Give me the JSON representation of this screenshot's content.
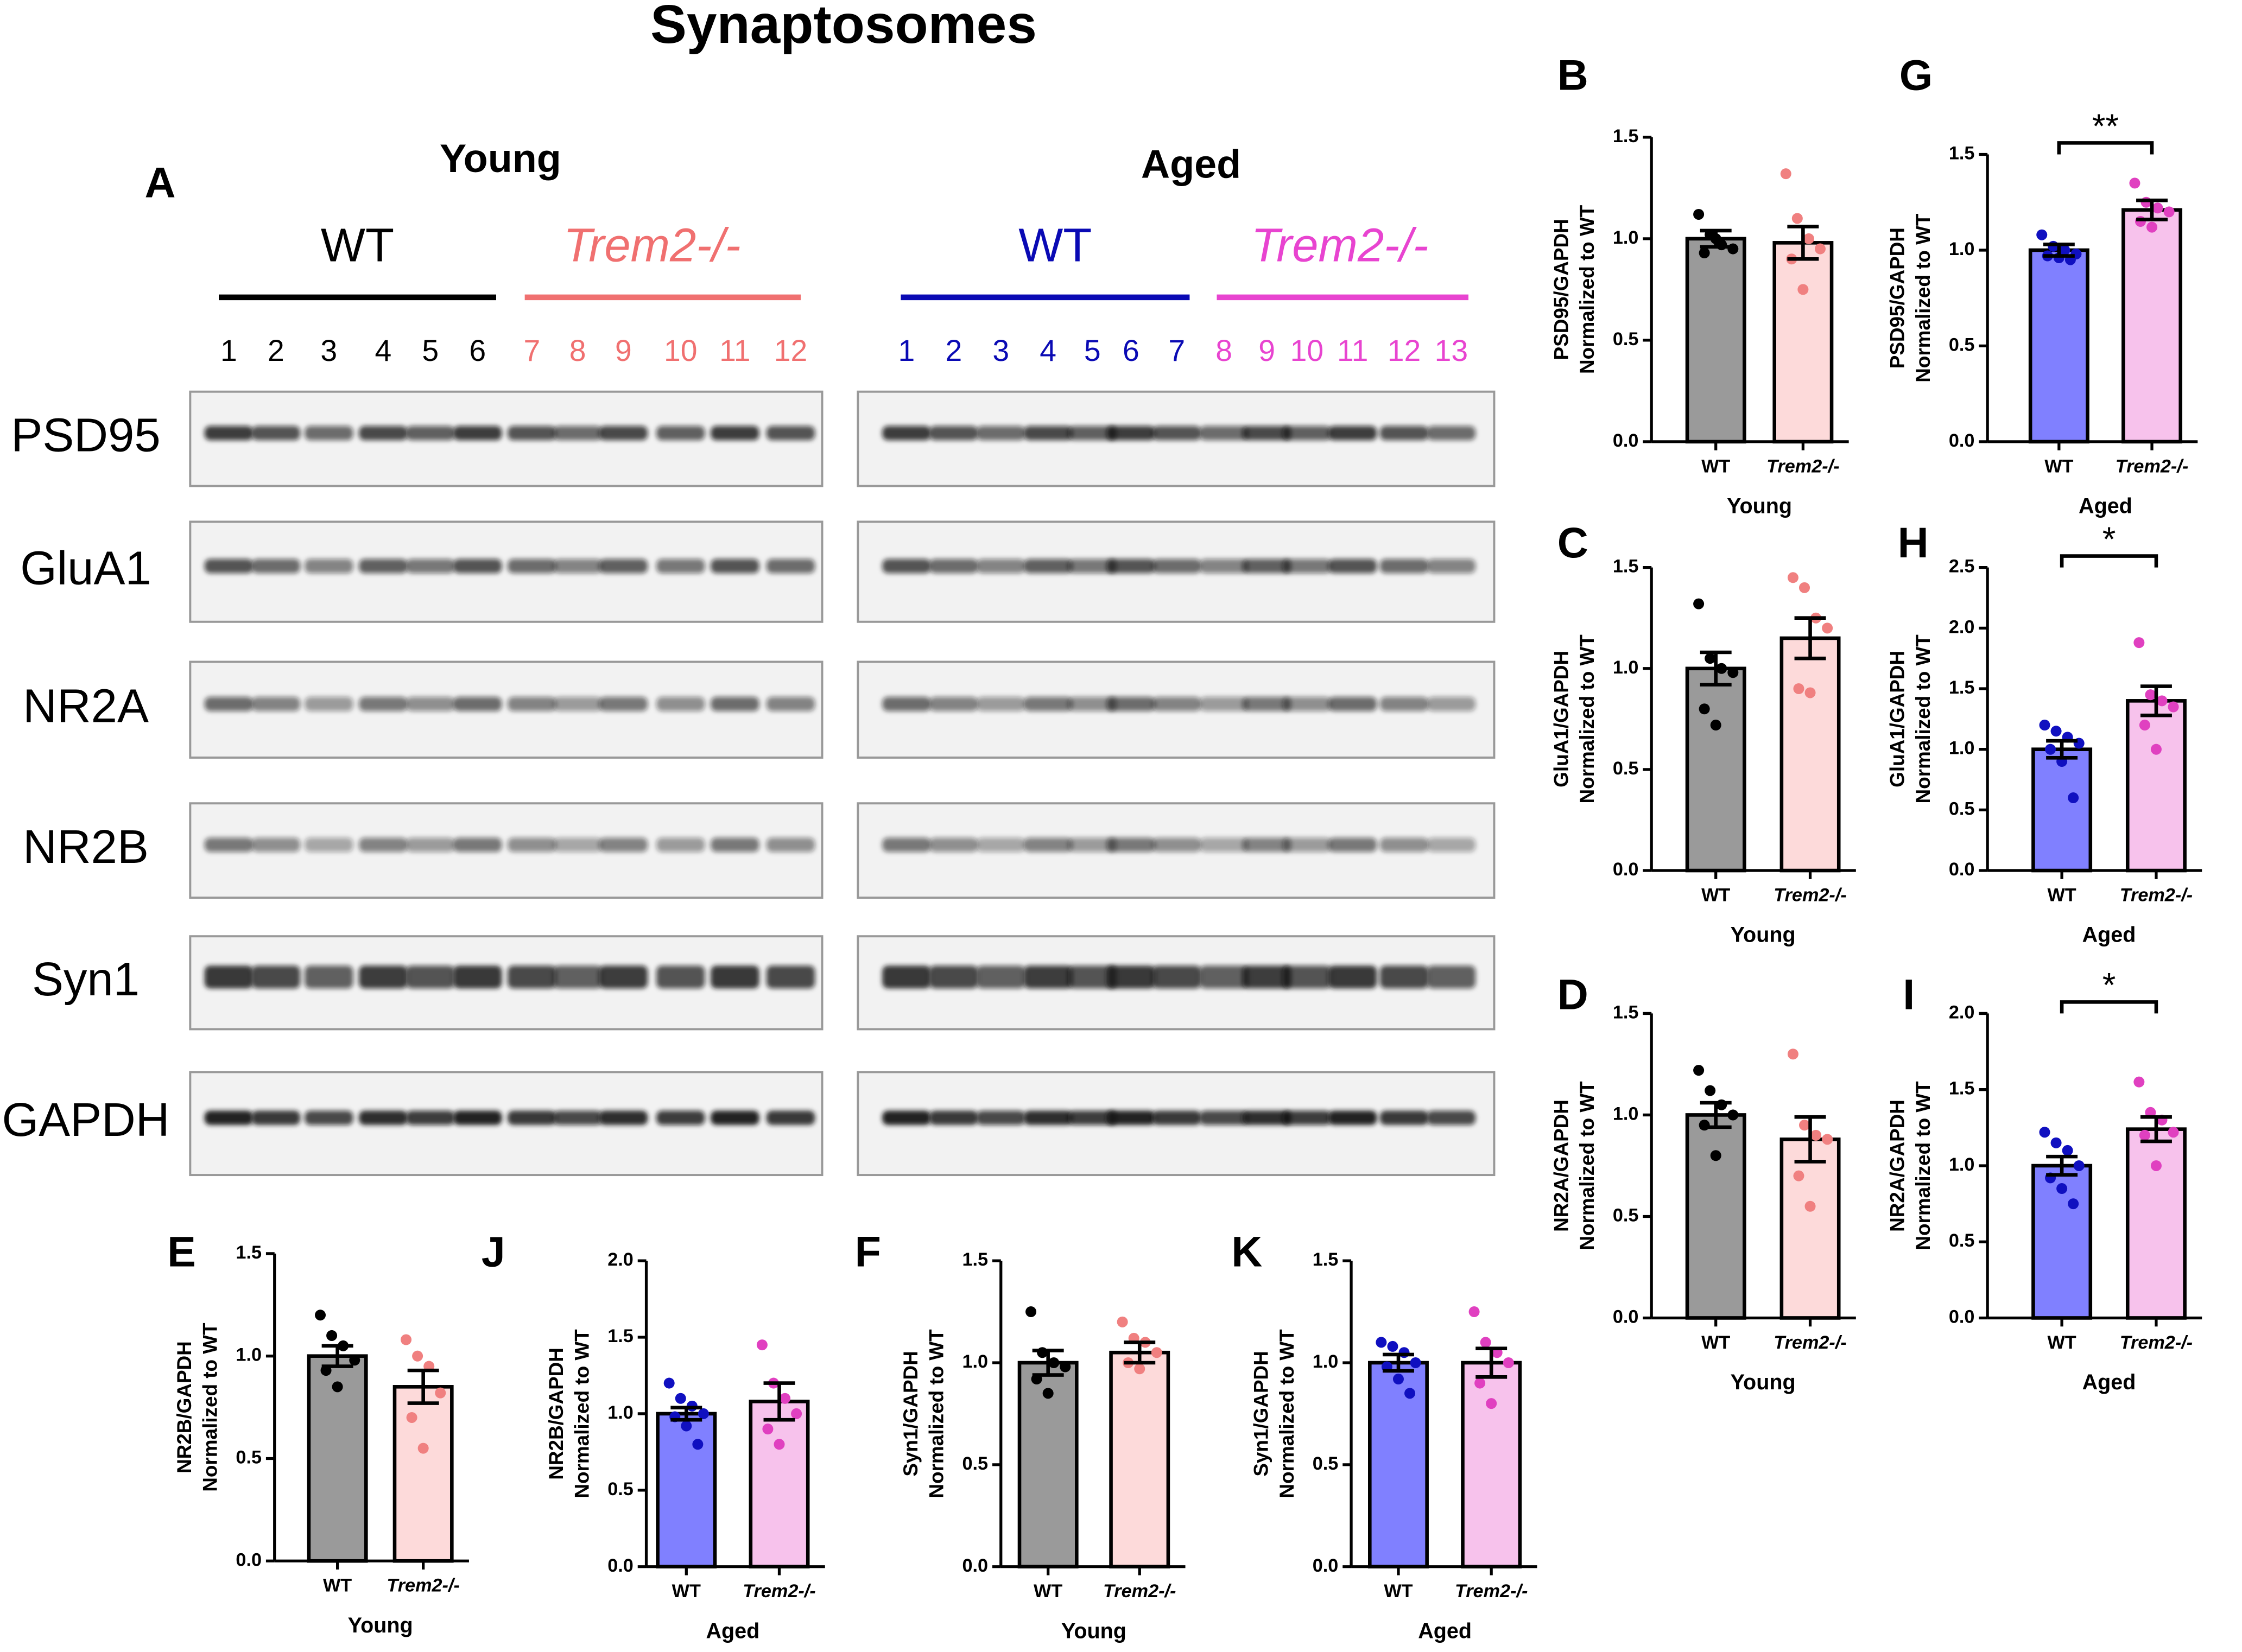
{
  "blot": {
    "title": "Synaptosomes",
    "panel": "A",
    "groups": [
      {
        "age": "Young",
        "genotypes": [
          {
            "name": "WT",
            "color": "#000000",
            "lanes": [
              "1",
              "2",
              "3",
              "4",
              "5",
              "6"
            ]
          },
          {
            "name": "Trem2-/-",
            "color": "#f07070",
            "lanes": [
              "7",
              "8",
              "9",
              "10",
              "11",
              "12"
            ]
          }
        ]
      },
      {
        "age": "Aged",
        "genotypes": [
          {
            "name": "WT",
            "color": "#0a0ab4",
            "lanes": [
              "1",
              "2",
              "3",
              "4",
              "5",
              "6",
              "7"
            ]
          },
          {
            "name": "Trem2-/-",
            "color": "#e844d0",
            "lanes": [
              "8",
              "9",
              "10",
              "11",
              "12",
              "13"
            ]
          }
        ]
      }
    ],
    "proteins": [
      "PSD95",
      "GluA1",
      "NR2A",
      "NR2B",
      "Syn1",
      "GAPDH"
    ]
  },
  "chart_data": [
    {
      "type": "bar",
      "panel": "B",
      "ylabel": [
        "PSD95/GAPDH",
        "Normalized to WT"
      ],
      "xlabel": "Young",
      "categories": [
        "WT",
        "Trem2-/-"
      ],
      "values": [
        1.0,
        0.98
      ],
      "errors": [
        0.04,
        0.08
      ],
      "points": [
        [
          1.12,
          1.02,
          0.97,
          0.95,
          0.93,
          1.0
        ],
        [
          1.32,
          1.1,
          1.0,
          0.95,
          0.9,
          0.75
        ]
      ],
      "colors": [
        "#9a9a9a",
        "#fddada"
      ],
      "point_colors": [
        "#000000",
        "#f08080"
      ],
      "ylim": [
        0,
        1.5
      ],
      "yticks": [
        {
          "value": 0,
          "label": "0.0"
        },
        0.5,
        {
          "value": 1,
          "label": "1.0"
        },
        1.5
      ]
    },
    {
      "type": "bar",
      "panel": "C",
      "ylabel": [
        "GluA1/GAPDH",
        "Normalized to WT"
      ],
      "xlabel": "Young",
      "categories": [
        "WT",
        "Trem2-/-"
      ],
      "values": [
        1.0,
        1.15
      ],
      "errors": [
        0.08,
        0.1
      ],
      "points": [
        [
          1.32,
          1.05,
          1.0,
          0.98,
          0.8,
          0.72
        ],
        [
          1.45,
          1.4,
          1.25,
          1.2,
          0.9,
          0.88
        ]
      ],
      "colors": [
        "#9a9a9a",
        "#fddada"
      ],
      "point_colors": [
        "#000000",
        "#f08080"
      ],
      "ylim": [
        0,
        1.5
      ],
      "yticks": [
        {
          "value": 0,
          "label": "0.0"
        },
        0.5,
        {
          "value": 1,
          "label": "1.0"
        },
        1.5
      ]
    },
    {
      "type": "bar",
      "panel": "D",
      "ylabel": [
        "NR2A/GAPDH",
        "Normalized to WT"
      ],
      "xlabel": "Young",
      "categories": [
        "WT",
        "Trem2-/-"
      ],
      "values": [
        1.0,
        0.88
      ],
      "errors": [
        0.06,
        0.11
      ],
      "points": [
        [
          1.22,
          1.12,
          1.05,
          1.0,
          0.95,
          0.8
        ],
        [
          1.3,
          0.95,
          0.9,
          0.88,
          0.7,
          0.55
        ]
      ],
      "colors": [
        "#9a9a9a",
        "#fddada"
      ],
      "point_colors": [
        "#000000",
        "#f08080"
      ],
      "ylim": [
        0,
        1.5
      ],
      "yticks": [
        {
          "value": 0,
          "label": "0.0"
        },
        0.5,
        {
          "value": 1,
          "label": "1.0"
        },
        1.5
      ]
    },
    {
      "type": "bar",
      "panel": "E",
      "ylabel": [
        "NR2B/GAPDH",
        "Normalized to WT"
      ],
      "xlabel": "Young",
      "categories": [
        "WT",
        "Trem2-/-"
      ],
      "values": [
        1.0,
        0.85
      ],
      "errors": [
        0.05,
        0.08
      ],
      "points": [
        [
          1.2,
          1.1,
          1.05,
          0.98,
          0.93,
          0.85
        ],
        [
          1.08,
          1.0,
          0.95,
          0.82,
          0.7,
          0.55
        ]
      ],
      "colors": [
        "#9a9a9a",
        "#fddada"
      ],
      "point_colors": [
        "#000000",
        "#f08080"
      ],
      "ylim": [
        0,
        1.5
      ],
      "yticks": [
        {
          "value": 0,
          "label": "0.0"
        },
        0.5,
        {
          "value": 1,
          "label": "1.0"
        },
        1.5
      ]
    },
    {
      "type": "bar",
      "panel": "F",
      "ylabel": [
        "Syn1/GAPDH",
        "Normalized to WT"
      ],
      "xlabel": "Young",
      "categories": [
        "WT",
        "Trem2-/-"
      ],
      "values": [
        1.0,
        1.05
      ],
      "errors": [
        0.06,
        0.05
      ],
      "points": [
        [
          1.25,
          1.05,
          1.0,
          0.98,
          0.92,
          0.85
        ],
        [
          1.2,
          1.12,
          1.1,
          1.05,
          1.0,
          0.97
        ]
      ],
      "colors": [
        "#9a9a9a",
        "#fddada"
      ],
      "point_colors": [
        "#000000",
        "#f08080"
      ],
      "ylim": [
        0,
        1.5
      ],
      "yticks": [
        {
          "value": 0,
          "label": "0.0"
        },
        0.5,
        {
          "value": 1,
          "label": "1.0"
        },
        1.5
      ]
    },
    {
      "type": "bar",
      "panel": "G",
      "ylabel": [
        "PSD95/GAPDH",
        "Normalized to WT"
      ],
      "xlabel": "Aged",
      "categories": [
        "WT",
        "Trem2-/-"
      ],
      "values": [
        1.0,
        1.21
      ],
      "errors": [
        0.03,
        0.05
      ],
      "points": [
        [
          1.08,
          1.02,
          1.0,
          0.98,
          0.97,
          0.96,
          0.95
        ],
        [
          1.35,
          1.25,
          1.22,
          1.2,
          1.15,
          1.12
        ]
      ],
      "colors": [
        "#8080ff",
        "#f7c2ec"
      ],
      "point_colors": [
        "#1010c0",
        "#e040c0"
      ],
      "ylim": [
        0,
        1.5
      ],
      "yticks": [
        {
          "value": 0,
          "label": "0.0"
        },
        0.5,
        {
          "value": 1,
          "label": "1.0"
        },
        1.5
      ],
      "annotation": "**"
    },
    {
      "type": "bar",
      "panel": "H",
      "ylabel": [
        "GluA1/GAPDH",
        "Normalized to WT"
      ],
      "xlabel": "Aged",
      "categories": [
        "WT",
        "Trem2-/-"
      ],
      "values": [
        1.0,
        1.4
      ],
      "errors": [
        0.07,
        0.12
      ],
      "points": [
        [
          1.2,
          1.15,
          1.1,
          1.05,
          1.0,
          0.9,
          0.6
        ],
        [
          1.88,
          1.45,
          1.4,
          1.35,
          1.2,
          1.0
        ]
      ],
      "colors": [
        "#8080ff",
        "#f7c2ec"
      ],
      "point_colors": [
        "#1010c0",
        "#e040c0"
      ],
      "ylim": [
        0,
        2.5
      ],
      "yticks": [
        {
          "value": 0,
          "label": "0.0"
        },
        0.5,
        {
          "value": 1,
          "label": "1.0"
        },
        1.5,
        {
          "value": 2,
          "label": "2.0"
        },
        2.5
      ],
      "annotation": "*"
    },
    {
      "type": "bar",
      "panel": "I",
      "ylabel": [
        "NR2A/GAPDH",
        "Normalized to WT"
      ],
      "xlabel": "Aged",
      "categories": [
        "WT",
        "Trem2-/-"
      ],
      "values": [
        1.0,
        1.24
      ],
      "errors": [
        0.06,
        0.08
      ],
      "points": [
        [
          1.22,
          1.15,
          1.1,
          1.0,
          0.92,
          0.85,
          0.75
        ],
        [
          1.55,
          1.35,
          1.3,
          1.22,
          1.2,
          1.0
        ]
      ],
      "colors": [
        "#8080ff",
        "#f7c2ec"
      ],
      "point_colors": [
        "#1010c0",
        "#e040c0"
      ],
      "ylim": [
        0,
        2
      ],
      "yticks": [
        {
          "value": 0,
          "label": "0.0"
        },
        0.5,
        {
          "value": 1,
          "label": "1.0"
        },
        1.5,
        {
          "value": 2,
          "label": "2.0"
        }
      ],
      "annotation": "*"
    },
    {
      "type": "bar",
      "panel": "J",
      "ylabel": [
        "NR2B/GAPDH",
        "Normalized to WT"
      ],
      "xlabel": "Aged",
      "categories": [
        "WT",
        "Trem2-/-"
      ],
      "values": [
        1.0,
        1.08
      ],
      "errors": [
        0.04,
        0.12
      ],
      "points": [
        [
          1.2,
          1.1,
          1.05,
          1.0,
          0.98,
          0.92,
          0.8
        ],
        [
          1.45,
          1.2,
          1.1,
          1.0,
          0.9,
          0.8
        ]
      ],
      "colors": [
        "#8080ff",
        "#f7c2ec"
      ],
      "point_colors": [
        "#1010c0",
        "#e040c0"
      ],
      "ylim": [
        0,
        2
      ],
      "yticks": [
        {
          "value": 0,
          "label": "0.0"
        },
        0.5,
        {
          "value": 1,
          "label": "1.0"
        },
        1.5,
        {
          "value": 2,
          "label": "2.0"
        }
      ]
    },
    {
      "type": "bar",
      "panel": "K",
      "ylabel": [
        "Syn1/GAPDH",
        "Normalized to WT"
      ],
      "xlabel": "Aged",
      "categories": [
        "WT",
        "Trem2-/-"
      ],
      "values": [
        1.0,
        1.0
      ],
      "errors": [
        0.04,
        0.07
      ],
      "points": [
        [
          1.1,
          1.08,
          1.05,
          1.0,
          0.98,
          0.92,
          0.85
        ],
        [
          1.25,
          1.1,
          1.05,
          1.0,
          0.9,
          0.8
        ]
      ],
      "colors": [
        "#8080ff",
        "#f7c2ec"
      ],
      "point_colors": [
        "#1010c0",
        "#e040c0"
      ],
      "ylim": [
        0,
        1.5
      ],
      "yticks": [
        {
          "value": 0,
          "label": "0.0"
        },
        0.5,
        {
          "value": 1,
          "label": "1.0"
        },
        1.5
      ]
    }
  ]
}
